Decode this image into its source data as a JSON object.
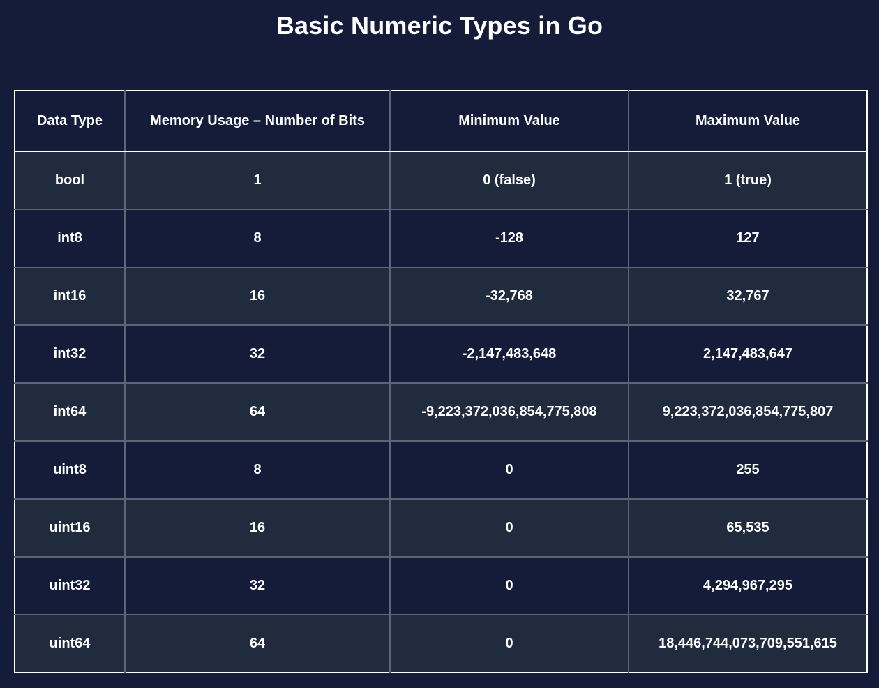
{
  "page": {
    "title": "Basic Numeric Types in Go"
  },
  "table": {
    "headers": [
      "Data Type",
      "Memory Usage – Number of Bits",
      "Minimum Value",
      "Maximum Value"
    ],
    "rows": [
      [
        "bool",
        "1",
        "0 (false)",
        "1 (true)"
      ],
      [
        "int8",
        "8",
        "-128",
        "127"
      ],
      [
        "int16",
        "16",
        "-32,768",
        "32,767"
      ],
      [
        "int32",
        "32",
        "-2,147,483,648",
        "2,147,483,647"
      ],
      [
        "int64",
        "64",
        "-9,223,372,036,854,775,808",
        "9,223,372,036,854,775,807"
      ],
      [
        "uint8",
        "8",
        "0",
        "255"
      ],
      [
        "uint16",
        "16",
        "0",
        "65,535"
      ],
      [
        "uint32",
        "32",
        "0",
        "4,294,967,295"
      ],
      [
        "uint64",
        "64",
        "0",
        "18,446,744,073,709,551,615"
      ]
    ]
  },
  "colors": {
    "background": "#151c3a",
    "row_alt": "#212b3e",
    "grid_line": "#5e6579",
    "outer_border": "#ffffff",
    "text": "#ffffff"
  }
}
